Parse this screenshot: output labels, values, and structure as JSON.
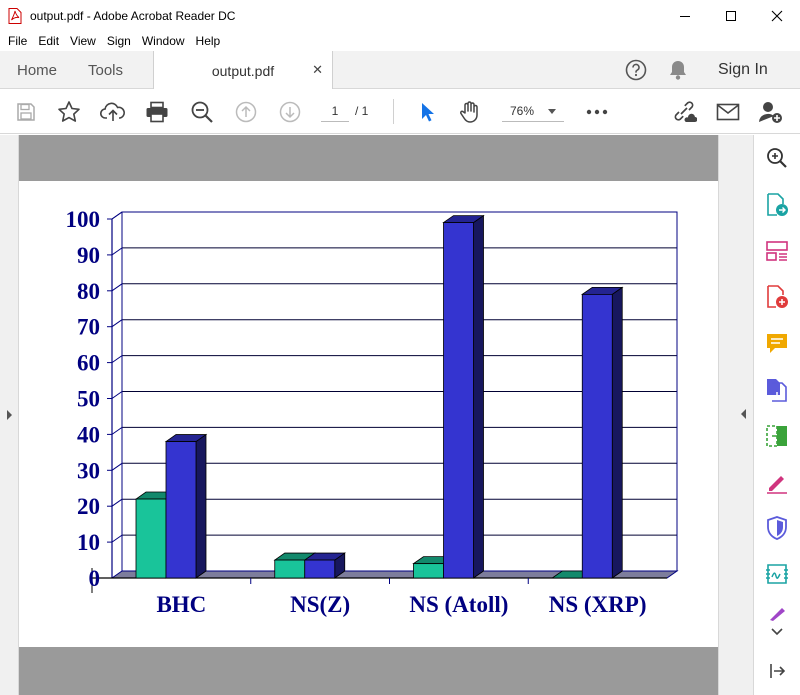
{
  "window": {
    "title": "output.pdf - Adobe Acrobat Reader DC"
  },
  "menu": [
    "File",
    "Edit",
    "View",
    "Sign",
    "Window",
    "Help"
  ],
  "tabs": {
    "home": "Home",
    "tools": "Tools",
    "doc": "output.pdf"
  },
  "signin": "Sign In",
  "toolbar": {
    "page_current": "1",
    "page_total": "/ 1",
    "zoom": "76%"
  },
  "colors": {
    "teal": "#19c49a",
    "blue": "#3434d0",
    "axis": "#000080",
    "floor": "#7d7d9c"
  },
  "chart_data": {
    "type": "bar",
    "categories": [
      "BHC",
      "NS(Z)",
      "NS (Atoll)",
      "NS (XRP)"
    ],
    "series": [
      {
        "values": [
          22,
          5,
          4,
          0
        ]
      },
      {
        "values": [
          38,
          5,
          99,
          79
        ]
      }
    ],
    "yticks": [
      "0",
      "10",
      "20",
      "30",
      "40",
      "50",
      "60",
      "70",
      "80",
      "90",
      "100"
    ],
    "ylim": [
      0,
      100
    ],
    "grid": true,
    "bar_style": "3d"
  }
}
